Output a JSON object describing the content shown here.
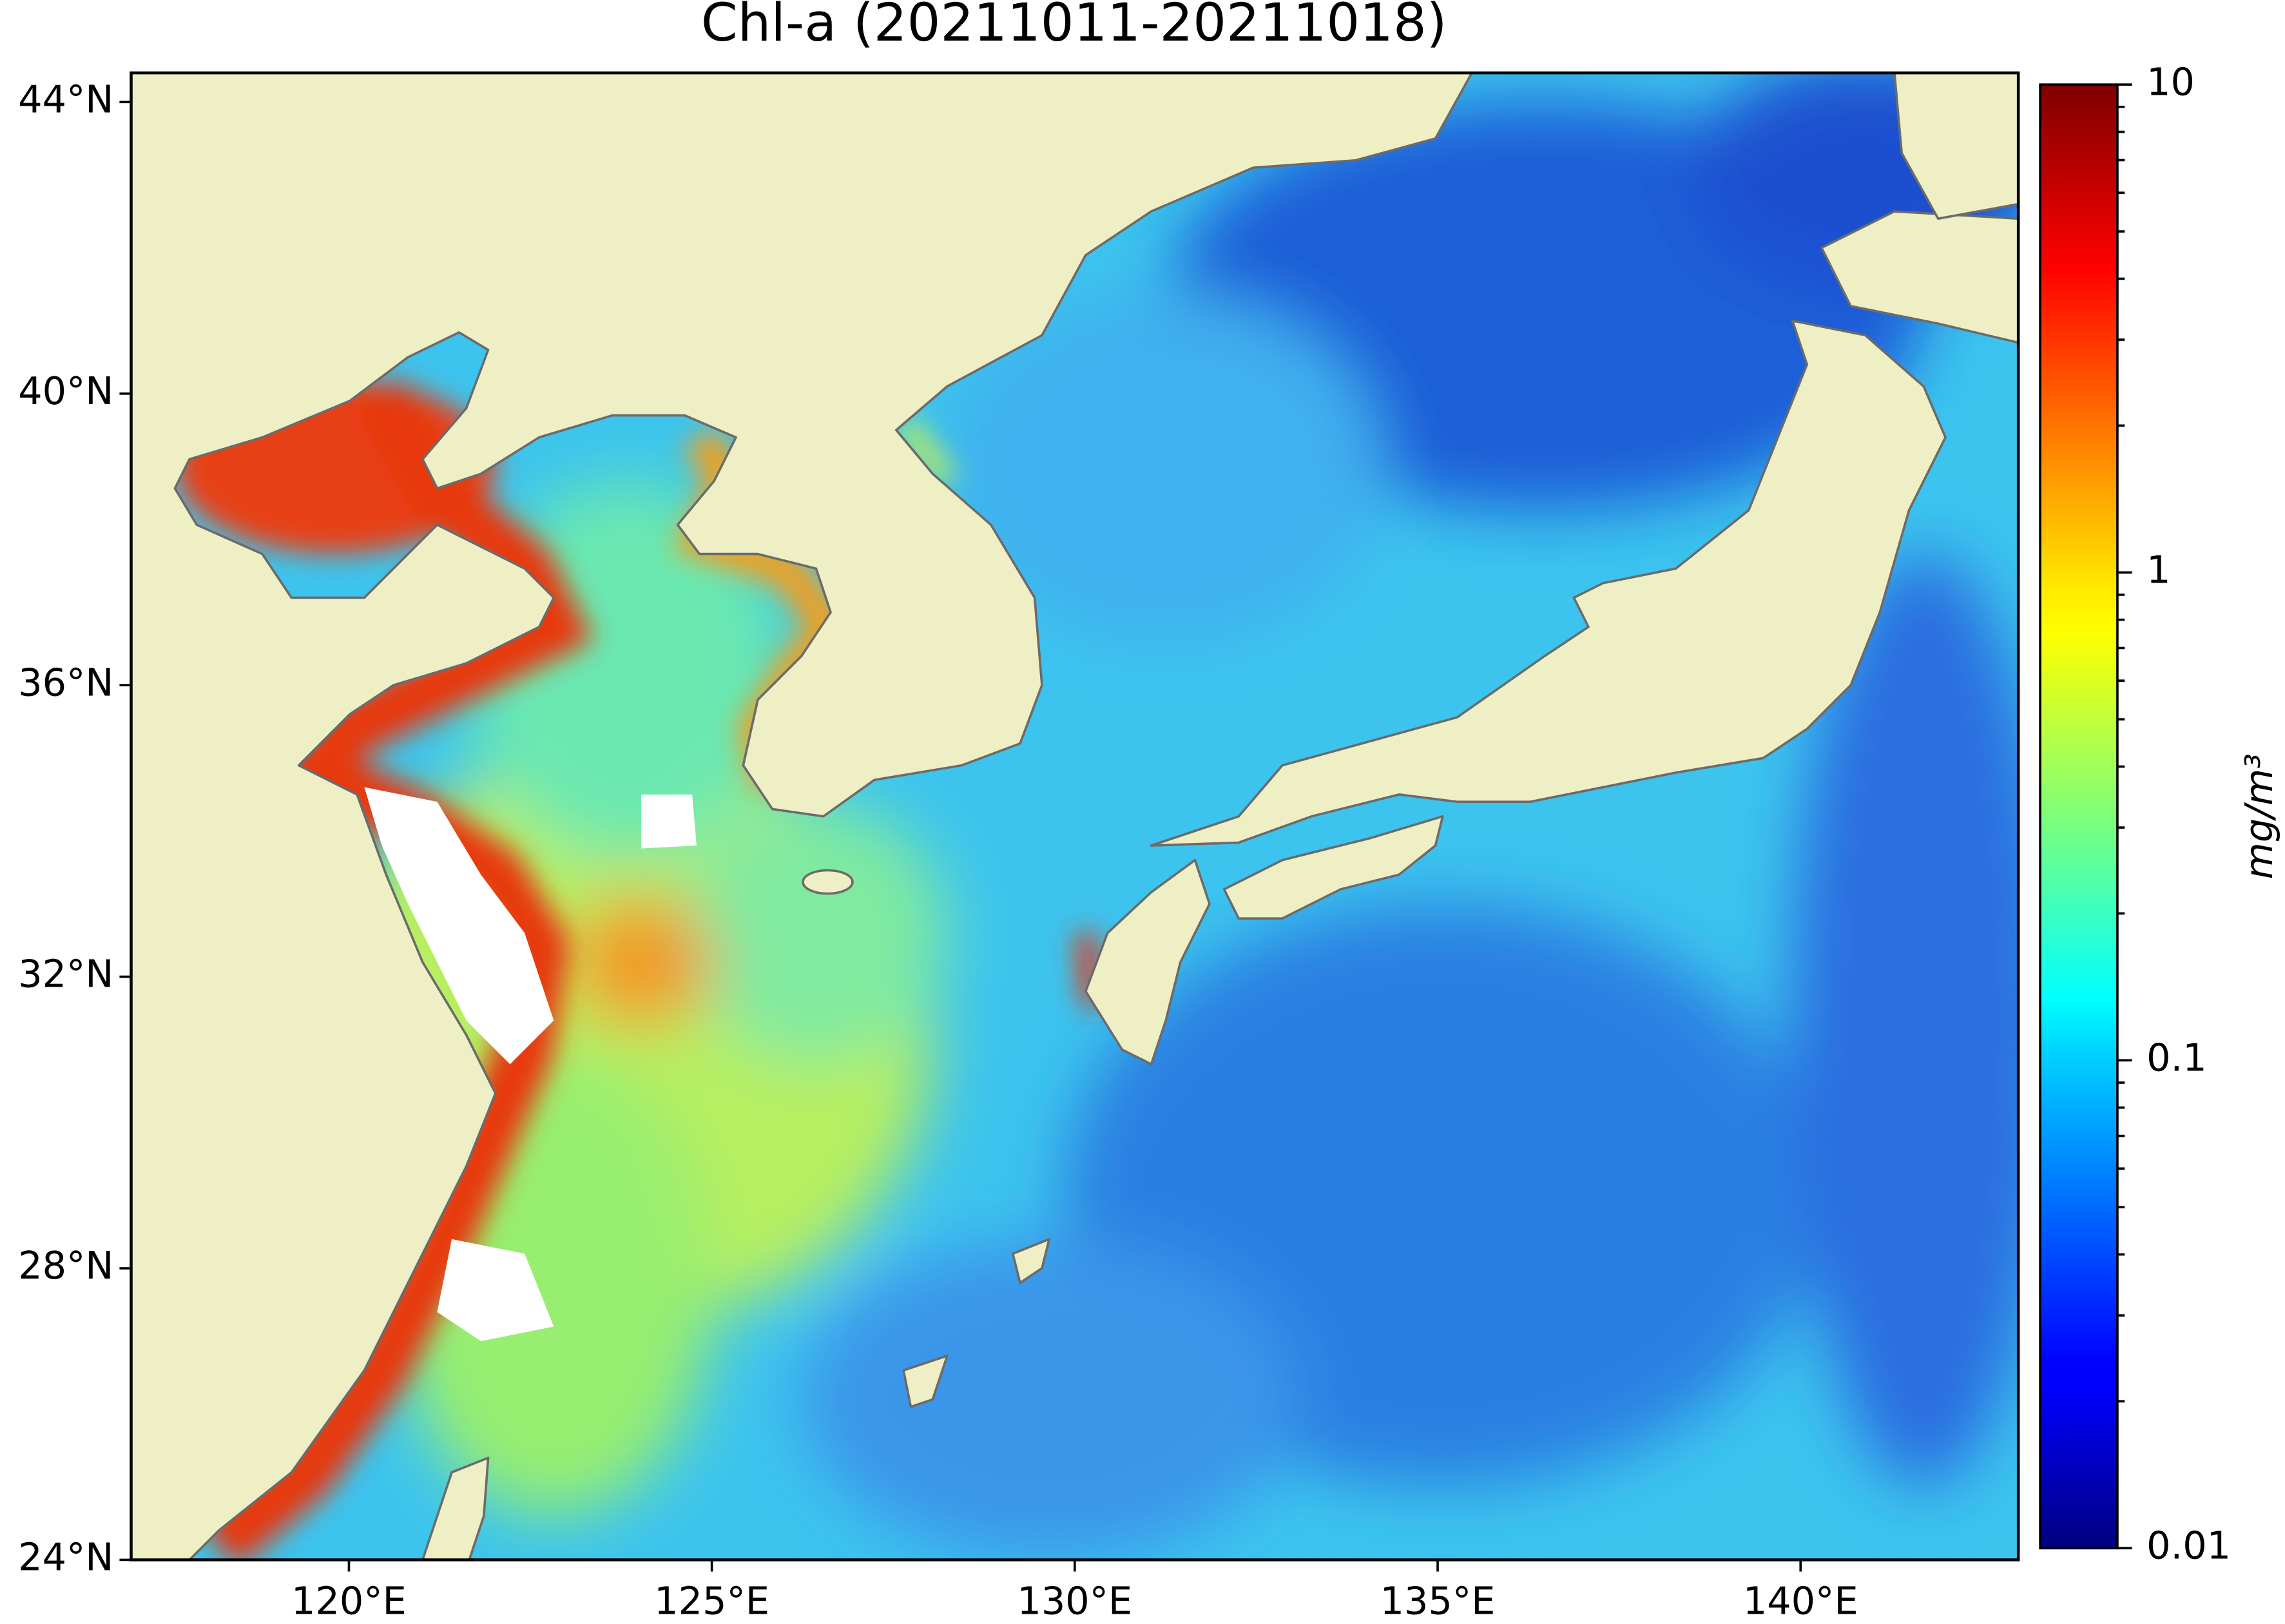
{
  "chart_data": {
    "type": "map",
    "title": "Chl-a (20211011-20211018)",
    "xlim": [
      117,
      143
    ],
    "ylim": [
      24,
      44.4
    ],
    "xticks": [
      {
        "value": 120,
        "label": "120°E"
      },
      {
        "value": 125,
        "label": "125°E"
      },
      {
        "value": 130,
        "label": "130°E"
      },
      {
        "value": 135,
        "label": "135°E"
      },
      {
        "value": 140,
        "label": "140°E"
      }
    ],
    "yticks": [
      {
        "value": 24,
        "label": "24°N"
      },
      {
        "value": 28,
        "label": "28°N"
      },
      {
        "value": 32,
        "label": "32°N"
      },
      {
        "value": 36,
        "label": "36°N"
      },
      {
        "value": 40,
        "label": "40°N"
      },
      {
        "value": 44,
        "label": "44°N"
      }
    ],
    "colorbar": {
      "label": "mg/m³",
      "scale": "log",
      "colormap": "jet",
      "lim": [
        0.01,
        10
      ],
      "ticks": [
        0.01,
        0.1,
        1,
        10
      ]
    }
  }
}
